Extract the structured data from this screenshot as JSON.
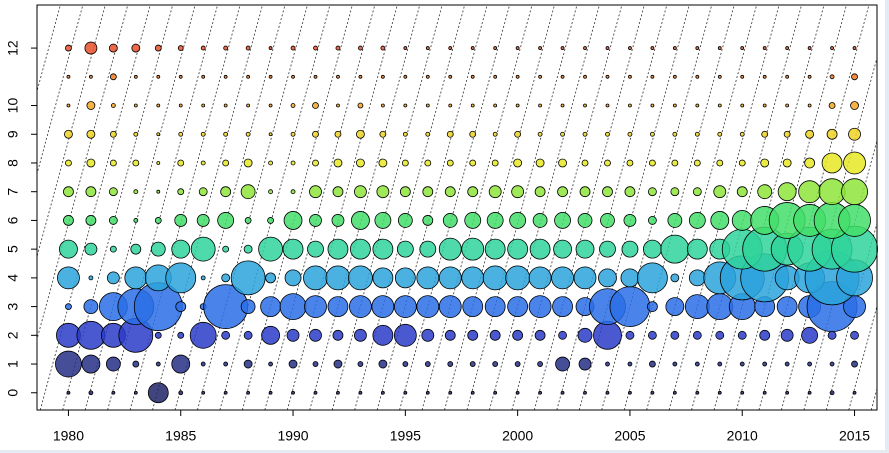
{
  "chart_data": {
    "type": "bubble",
    "x": [
      1980,
      1981,
      1982,
      1983,
      1984,
      1985,
      1986,
      1987,
      1988,
      1989,
      1990,
      1991,
      1992,
      1993,
      1994,
      1995,
      1996,
      1997,
      1998,
      1999,
      2000,
      2001,
      2002,
      2003,
      2004,
      2005,
      2006,
      2007,
      2008,
      2009,
      2010,
      2011,
      2012,
      2013,
      2014,
      2015
    ],
    "xlim": [
      1978.6,
      2016
    ],
    "xticks": [
      1980,
      1985,
      1990,
      1995,
      2000,
      2005,
      2010,
      2015
    ],
    "ylim": [
      -0.6,
      13.5
    ],
    "yticks": [
      0,
      1,
      2,
      3,
      4,
      5,
      6,
      7,
      8,
      9,
      10,
      12
    ],
    "series": [
      {
        "y": 0,
        "color": "#1f2566",
        "sizes": [
          1.5,
          2,
          1.5,
          1.5,
          10,
          2,
          1.5,
          1.5,
          1.5,
          1.5,
          1.5,
          1.5,
          1.5,
          1.5,
          1.5,
          1.5,
          1.5,
          1.5,
          1.5,
          1.5,
          1.5,
          1.5,
          1.5,
          1.5,
          1.5,
          1.5,
          1.5,
          1.5,
          1.5,
          1.5,
          1.5,
          1.5,
          1.5,
          1.5,
          2,
          1.5
        ]
      },
      {
        "y": 1,
        "color": "#262f85",
        "sizes": [
          13,
          9,
          7,
          3,
          2,
          9,
          2,
          2,
          4,
          2,
          4,
          2.5,
          4,
          2.5,
          4,
          2.5,
          2.5,
          2.5,
          2.5,
          2.5,
          2.5,
          2.5,
          7,
          6,
          2,
          2,
          3,
          2,
          2,
          2,
          2,
          2,
          2,
          2,
          2,
          3
        ]
      },
      {
        "y": 2,
        "color": "#2b3cc9",
        "sizes": [
          12,
          14,
          12,
          17,
          3,
          3,
          13,
          4,
          4,
          9,
          6,
          6,
          5,
          6,
          10,
          11,
          6,
          5,
          5,
          5,
          5,
          5,
          4,
          7,
          14,
          4,
          4,
          4,
          4,
          4,
          4,
          5,
          6,
          8,
          4,
          4
        ]
      },
      {
        "y": 3,
        "color": "#2a6ee8",
        "sizes": [
          3,
          7,
          14,
          18,
          24,
          5,
          3,
          22,
          7,
          10,
          13,
          11,
          10,
          11,
          11,
          11,
          11,
          11,
          10,
          10,
          10,
          11,
          10,
          9,
          18,
          20,
          5,
          9,
          12,
          13,
          13,
          10,
          10,
          11,
          25,
          11
        ]
      },
      {
        "y": 4,
        "color": "#2ba3dc",
        "sizes": [
          11,
          2,
          6,
          11,
          13,
          15,
          2,
          4,
          17,
          5,
          8,
          12,
          12,
          12,
          10,
          10,
          11,
          11,
          11,
          12,
          12,
          11,
          11,
          11,
          9,
          9,
          15,
          4,
          8,
          16,
          22,
          24,
          12,
          15,
          27,
          18
        ]
      },
      {
        "y": 5,
        "color": "#2fd39b",
        "sizes": [
          9,
          6,
          3,
          5,
          7,
          9,
          12,
          3,
          4,
          12,
          10,
          8,
          10,
          10,
          10,
          8,
          8,
          11,
          11,
          10,
          10,
          10,
          9,
          9,
          8,
          8,
          9,
          14,
          10,
          10,
          20,
          22,
          16,
          22,
          20,
          23
        ]
      },
      {
        "y": 6,
        "color": "#43de6a",
        "sizes": [
          5,
          5,
          4,
          2,
          3,
          6,
          6,
          8,
          3,
          3,
          9,
          6,
          6,
          9,
          8,
          7,
          5,
          7,
          8,
          8,
          8,
          7,
          8,
          7,
          7,
          6,
          4,
          7,
          8,
          9,
          10,
          14,
          18,
          16,
          18,
          16
        ]
      },
      {
        "y": 7,
        "color": "#8ee43a",
        "sizes": [
          5,
          5,
          4,
          2,
          1.5,
          3,
          4,
          5,
          7,
          2,
          2,
          6,
          5,
          6,
          6,
          5,
          5,
          5,
          5,
          6,
          6,
          5,
          5,
          5,
          5,
          5,
          4,
          4,
          4,
          6,
          5,
          7,
          9,
          11,
          13,
          13
        ]
      },
      {
        "y": 8,
        "color": "#e6e825",
        "sizes": [
          3,
          4,
          3,
          3,
          1.5,
          3,
          2,
          3,
          4,
          2,
          2,
          3,
          4,
          4,
          4,
          3,
          3,
          3,
          3,
          3,
          4,
          4,
          4,
          3,
          3,
          3,
          3,
          3,
          3,
          3,
          3,
          4,
          4,
          5,
          10,
          11
        ]
      },
      {
        "y": 9,
        "color": "#f0d325",
        "sizes": [
          4,
          4,
          3,
          2,
          1.5,
          2,
          2,
          2,
          2,
          1.5,
          2,
          3,
          3,
          4,
          3,
          2,
          2,
          3,
          3,
          2,
          3,
          2,
          2,
          2,
          2,
          2,
          2,
          2,
          2,
          2,
          2,
          3,
          3,
          4,
          5,
          6
        ]
      },
      {
        "y": 10,
        "color": "#f4a623",
        "sizes": [
          1.5,
          4,
          2,
          1.5,
          1.5,
          1.5,
          1.5,
          1.5,
          1.5,
          1.5,
          2,
          3,
          1.5,
          2.5,
          1.5,
          1.5,
          1.5,
          1.5,
          1.5,
          1.5,
          1.5,
          1.5,
          1.5,
          1.5,
          1.5,
          1.5,
          1.5,
          1.5,
          1.5,
          1.5,
          1.5,
          1.5,
          1.5,
          1.5,
          3,
          4
        ]
      },
      {
        "y": 11,
        "color": "#f07a22",
        "sizes": [
          1.5,
          1.5,
          3,
          1.5,
          1.5,
          1.5,
          1.5,
          1.5,
          1.5,
          1.5,
          1.5,
          1.5,
          1.5,
          1.5,
          1.5,
          1.5,
          1.5,
          1.5,
          1.5,
          1.5,
          1.5,
          1.5,
          1.5,
          1.5,
          1.5,
          1.5,
          1.5,
          1.5,
          1.5,
          1.5,
          1.5,
          1.5,
          1.5,
          1.5,
          2,
          3
        ]
      },
      {
        "y": 12,
        "color": "#e8502a",
        "sizes": [
          3,
          6,
          4,
          4,
          3,
          2.5,
          2,
          2,
          2,
          1.5,
          2,
          2,
          2,
          2,
          2,
          1.5,
          1.5,
          1.5,
          1.5,
          1.5,
          1.5,
          1.5,
          1.5,
          1.5,
          1.5,
          1.5,
          1.5,
          1.5,
          1.5,
          1.5,
          1.5,
          1.5,
          1.5,
          1.5,
          1.5,
          1.5
        ]
      }
    ]
  }
}
